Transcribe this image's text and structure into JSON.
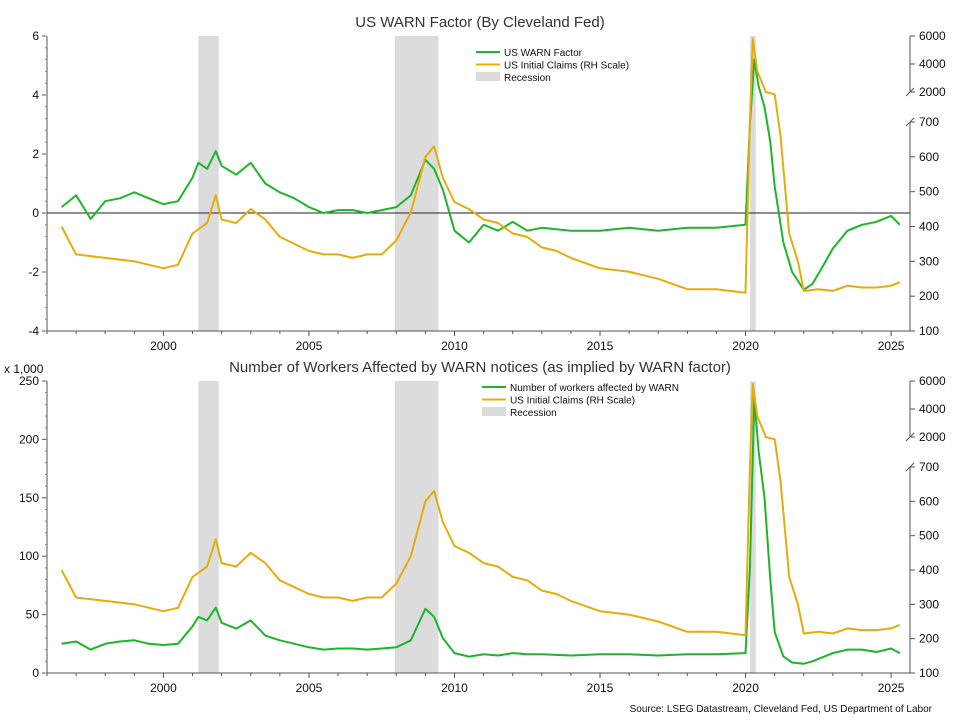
{
  "chart_data": [
    {
      "type": "line",
      "title": "US WARN Factor (By Cleveland Fed)",
      "ylim": [
        -4,
        6
      ],
      "yticks": [
        "-4",
        "-2",
        "0",
        "2",
        "4",
        "6"
      ],
      "ylim_right_lower": [
        100,
        700
      ],
      "ylim_right_upper": [
        2000,
        6000
      ],
      "yticks_right": [
        "100",
        "200",
        "300",
        "400",
        "500",
        "600",
        "700",
        "2000",
        "4000",
        "6000"
      ],
      "xticks": [
        "2000",
        "2005",
        "2010",
        "2015",
        "2020",
        "2025"
      ],
      "zero_line": true,
      "legend": {
        "placement": "top-center",
        "entries": [
          "US WARN Factor",
          "US Initial Claims (RH Scale)",
          "Recession"
        ]
      },
      "recessions": [
        [
          2001.2,
          2001.9
        ],
        [
          2007.95,
          2009.45
        ],
        [
          2020.15,
          2020.35
        ]
      ],
      "series": [
        {
          "name": "US WARN Factor",
          "axis": "left",
          "color": "#1db52a",
          "points": [
            [
              1996.5,
              0.2
            ],
            [
              1997.0,
              0.6
            ],
            [
              1997.5,
              -0.2
            ],
            [
              1998.0,
              0.4
            ],
            [
              1998.5,
              0.5
            ],
            [
              1999.0,
              0.7
            ],
            [
              1999.5,
              0.5
            ],
            [
              2000.0,
              0.3
            ],
            [
              2000.5,
              0.4
            ],
            [
              2001.0,
              1.2
            ],
            [
              2001.2,
              1.7
            ],
            [
              2001.5,
              1.5
            ],
            [
              2001.8,
              2.1
            ],
            [
              2002.0,
              1.6
            ],
            [
              2002.5,
              1.3
            ],
            [
              2003.0,
              1.7
            ],
            [
              2003.5,
              1.0
            ],
            [
              2004.0,
              0.7
            ],
            [
              2004.5,
              0.5
            ],
            [
              2005.0,
              0.2
            ],
            [
              2005.5,
              0.0
            ],
            [
              2006.0,
              0.1
            ],
            [
              2006.5,
              0.1
            ],
            [
              2007.0,
              0.0
            ],
            [
              2007.5,
              0.1
            ],
            [
              2008.0,
              0.2
            ],
            [
              2008.5,
              0.6
            ],
            [
              2009.0,
              1.8
            ],
            [
              2009.3,
              1.5
            ],
            [
              2009.6,
              0.8
            ],
            [
              2010.0,
              -0.6
            ],
            [
              2010.5,
              -1.0
            ],
            [
              2011.0,
              -0.4
            ],
            [
              2011.5,
              -0.6
            ],
            [
              2012.0,
              -0.3
            ],
            [
              2012.5,
              -0.6
            ],
            [
              2013.0,
              -0.5
            ],
            [
              2014.0,
              -0.6
            ],
            [
              2015.0,
              -0.6
            ],
            [
              2016.0,
              -0.5
            ],
            [
              2017.0,
              -0.6
            ],
            [
              2018.0,
              -0.5
            ],
            [
              2019.0,
              -0.5
            ],
            [
              2020.0,
              -0.4
            ],
            [
              2020.15,
              3.0
            ],
            [
              2020.3,
              5.2
            ],
            [
              2020.45,
              4.3
            ],
            [
              2020.65,
              3.6
            ],
            [
              2020.85,
              2.4
            ],
            [
              2021.0,
              0.9
            ],
            [
              2021.3,
              -1.0
            ],
            [
              2021.6,
              -2.0
            ],
            [
              2022.0,
              -2.6
            ],
            [
              2022.3,
              -2.4
            ],
            [
              2022.6,
              -1.9
            ],
            [
              2023.0,
              -1.2
            ],
            [
              2023.5,
              -0.6
            ],
            [
              2024.0,
              -0.4
            ],
            [
              2024.5,
              -0.3
            ],
            [
              2025.0,
              -0.1
            ],
            [
              2025.3,
              -0.4
            ]
          ]
        },
        {
          "name": "US Initial Claims (RH Scale)",
          "axis": "right",
          "color": "#e5ac0c",
          "points": [
            [
              1996.5,
              400
            ],
            [
              1997.0,
              320
            ],
            [
              1998.0,
              310
            ],
            [
              1999.0,
              300
            ],
            [
              2000.0,
              280
            ],
            [
              2000.5,
              290
            ],
            [
              2001.0,
              380
            ],
            [
              2001.5,
              410
            ],
            [
              2001.8,
              490
            ],
            [
              2002.0,
              420
            ],
            [
              2002.5,
              410
            ],
            [
              2003.0,
              450
            ],
            [
              2003.5,
              420
            ],
            [
              2004.0,
              370
            ],
            [
              2004.5,
              350
            ],
            [
              2005.0,
              330
            ],
            [
              2005.5,
              320
            ],
            [
              2006.0,
              320
            ],
            [
              2006.5,
              310
            ],
            [
              2007.0,
              320
            ],
            [
              2007.5,
              320
            ],
            [
              2008.0,
              360
            ],
            [
              2008.5,
              440
            ],
            [
              2009.0,
              600
            ],
            [
              2009.3,
              630
            ],
            [
              2009.6,
              540
            ],
            [
              2010.0,
              470
            ],
            [
              2010.5,
              450
            ],
            [
              2011.0,
              420
            ],
            [
              2011.5,
              410
            ],
            [
              2012.0,
              380
            ],
            [
              2012.5,
              370
            ],
            [
              2013.0,
              340
            ],
            [
              2013.5,
              330
            ],
            [
              2014.0,
              310
            ],
            [
              2015.0,
              280
            ],
            [
              2016.0,
              270
            ],
            [
              2017.0,
              250
            ],
            [
              2018.0,
              220
            ],
            [
              2019.0,
              220
            ],
            [
              2020.0,
              210
            ],
            [
              2020.15,
              700
            ],
            [
              2020.25,
              5800
            ],
            [
              2020.4,
              3500
            ],
            [
              2020.7,
              2000
            ],
            [
              2021.0,
              1900
            ],
            [
              2021.2,
              660
            ],
            [
              2021.5,
              380
            ],
            [
              2021.8,
              300
            ],
            [
              2022.0,
              215
            ],
            [
              2022.5,
              220
            ],
            [
              2023.0,
              215
            ],
            [
              2023.5,
              230
            ],
            [
              2024.0,
              225
            ],
            [
              2024.5,
              225
            ],
            [
              2025.0,
              230
            ],
            [
              2025.3,
              240
            ]
          ]
        }
      ]
    },
    {
      "type": "line",
      "title": "Number of Workers Affected by WARN notices (as implied by WARN factor)",
      "y_unit": "x 1,000",
      "ylim": [
        0,
        250
      ],
      "yticks": [
        "0",
        "50",
        "100",
        "150",
        "200",
        "250"
      ],
      "ylim_right_lower": [
        100,
        700
      ],
      "ylim_right_upper": [
        2000,
        6000
      ],
      "yticks_right": [
        "100",
        "200",
        "300",
        "400",
        "500",
        "600",
        "700",
        "2000",
        "4000",
        "6000"
      ],
      "xticks": [
        "2000",
        "2005",
        "2010",
        "2015",
        "2020",
        "2025"
      ],
      "legend": {
        "placement": "top-center",
        "entries": [
          "Number of workers affected by WARN",
          "US Initial Claims (RH Scale)",
          "Recession"
        ]
      },
      "recessions": [
        [
          2001.2,
          2001.9
        ],
        [
          2007.95,
          2009.45
        ],
        [
          2020.15,
          2020.35
        ]
      ],
      "series": [
        {
          "name": "Number of workers affected by WARN",
          "axis": "left",
          "color": "#1db52a",
          "points": [
            [
              1996.5,
              25
            ],
            [
              1997.0,
              27
            ],
            [
              1997.5,
              20
            ],
            [
              1998.0,
              25
            ],
            [
              1998.5,
              27
            ],
            [
              1999.0,
              28
            ],
            [
              1999.5,
              25
            ],
            [
              2000.0,
              24
            ],
            [
              2000.5,
              25
            ],
            [
              2001.0,
              40
            ],
            [
              2001.2,
              48
            ],
            [
              2001.5,
              45
            ],
            [
              2001.8,
              56
            ],
            [
              2002.0,
              43
            ],
            [
              2002.5,
              38
            ],
            [
              2003.0,
              45
            ],
            [
              2003.5,
              32
            ],
            [
              2004.0,
              28
            ],
            [
              2004.5,
              25
            ],
            [
              2005.0,
              22
            ],
            [
              2005.5,
              20
            ],
            [
              2006.0,
              21
            ],
            [
              2006.5,
              21
            ],
            [
              2007.0,
              20
            ],
            [
              2007.5,
              21
            ],
            [
              2008.0,
              22
            ],
            [
              2008.5,
              28
            ],
            [
              2009.0,
              55
            ],
            [
              2009.3,
              48
            ],
            [
              2009.6,
              30
            ],
            [
              2010.0,
              17
            ],
            [
              2010.5,
              14
            ],
            [
              2011.0,
              16
            ],
            [
              2011.5,
              15
            ],
            [
              2012.0,
              17
            ],
            [
              2012.5,
              16
            ],
            [
              2013.0,
              16
            ],
            [
              2014.0,
              15
            ],
            [
              2015.0,
              16
            ],
            [
              2016.0,
              16
            ],
            [
              2017.0,
              15
            ],
            [
              2018.0,
              16
            ],
            [
              2019.0,
              16
            ],
            [
              2020.0,
              17
            ],
            [
              2020.15,
              90
            ],
            [
              2020.3,
              236
            ],
            [
              2020.45,
              190
            ],
            [
              2020.65,
              150
            ],
            [
              2020.85,
              80
            ],
            [
              2021.0,
              35
            ],
            [
              2021.3,
              14
            ],
            [
              2021.6,
              9
            ],
            [
              2022.0,
              8
            ],
            [
              2022.3,
              10
            ],
            [
              2022.6,
              13
            ],
            [
              2023.0,
              17
            ],
            [
              2023.5,
              20
            ],
            [
              2024.0,
              20
            ],
            [
              2024.5,
              18
            ],
            [
              2025.0,
              21
            ],
            [
              2025.3,
              17
            ]
          ]
        },
        {
          "name": "US Initial Claims (RH Scale)",
          "axis": "right",
          "color": "#e5ac0c",
          "points": [
            [
              1996.5,
              400
            ],
            [
              1997.0,
              320
            ],
            [
              1998.0,
              310
            ],
            [
              1999.0,
              300
            ],
            [
              2000.0,
              280
            ],
            [
              2000.5,
              290
            ],
            [
              2001.0,
              380
            ],
            [
              2001.5,
              410
            ],
            [
              2001.8,
              490
            ],
            [
              2002.0,
              420
            ],
            [
              2002.5,
              410
            ],
            [
              2003.0,
              450
            ],
            [
              2003.5,
              420
            ],
            [
              2004.0,
              370
            ],
            [
              2004.5,
              350
            ],
            [
              2005.0,
              330
            ],
            [
              2005.5,
              320
            ],
            [
              2006.0,
              320
            ],
            [
              2006.5,
              310
            ],
            [
              2007.0,
              320
            ],
            [
              2007.5,
              320
            ],
            [
              2008.0,
              360
            ],
            [
              2008.5,
              440
            ],
            [
              2009.0,
              600
            ],
            [
              2009.3,
              630
            ],
            [
              2009.6,
              540
            ],
            [
              2010.0,
              470
            ],
            [
              2010.5,
              450
            ],
            [
              2011.0,
              420
            ],
            [
              2011.5,
              410
            ],
            [
              2012.0,
              380
            ],
            [
              2012.5,
              370
            ],
            [
              2013.0,
              340
            ],
            [
              2013.5,
              330
            ],
            [
              2014.0,
              310
            ],
            [
              2015.0,
              280
            ],
            [
              2016.0,
              270
            ],
            [
              2017.0,
              250
            ],
            [
              2018.0,
              220
            ],
            [
              2019.0,
              220
            ],
            [
              2020.0,
              210
            ],
            [
              2020.15,
              700
            ],
            [
              2020.25,
              5800
            ],
            [
              2020.4,
              3500
            ],
            [
              2020.7,
              2000
            ],
            [
              2021.0,
              1900
            ],
            [
              2021.2,
              660
            ],
            [
              2021.5,
              380
            ],
            [
              2021.8,
              300
            ],
            [
              2022.0,
              215
            ],
            [
              2022.5,
              220
            ],
            [
              2023.0,
              215
            ],
            [
              2023.5,
              230
            ],
            [
              2024.0,
              225
            ],
            [
              2024.5,
              225
            ],
            [
              2025.0,
              230
            ],
            [
              2025.3,
              240
            ]
          ]
        }
      ]
    }
  ],
  "source": "Source: LSEG Datastream, Cleveland Fed, US Department of Labor"
}
